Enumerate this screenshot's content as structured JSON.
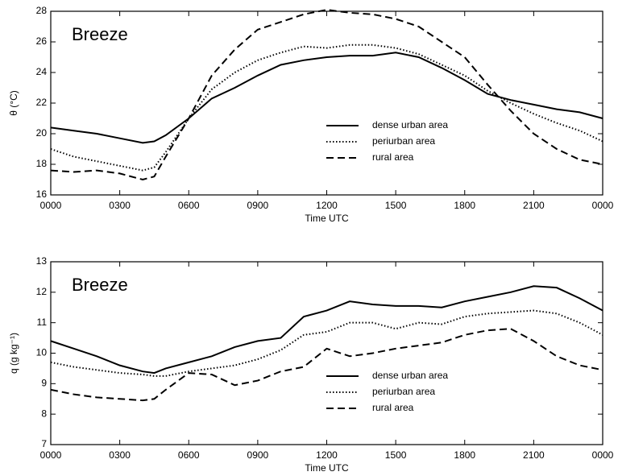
{
  "chart_data": [
    {
      "type": "line",
      "annotation": "Breeze",
      "xlabel": "Time UTC",
      "ylabel": "θ (°C)",
      "x": [
        0,
        1,
        2,
        3,
        4,
        4.5,
        5,
        6,
        7,
        8,
        9,
        10,
        11,
        12,
        13,
        14,
        15,
        16,
        17,
        18,
        19,
        20,
        21,
        22,
        23,
        24
      ],
      "xlim": [
        0,
        24
      ],
      "xticks": [
        {
          "value": 0,
          "label": "0000"
        },
        {
          "value": 3,
          "label": "0300"
        },
        {
          "value": 6,
          "label": "0600"
        },
        {
          "value": 9,
          "label": "0900"
        },
        {
          "value": 12,
          "label": "1200"
        },
        {
          "value": 15,
          "label": "1500"
        },
        {
          "value": 18,
          "label": "1800"
        },
        {
          "value": 21,
          "label": "2100"
        },
        {
          "value": 24,
          "label": "0000"
        }
      ],
      "ylim": [
        16,
        28
      ],
      "yticks": [
        16,
        18,
        20,
        22,
        24,
        26,
        28
      ],
      "series": [
        {
          "name": "dense urban area",
          "color": "#000000",
          "dash": "solid",
          "values": [
            20.4,
            20.2,
            20.0,
            19.7,
            19.4,
            19.5,
            19.9,
            21.0,
            22.3,
            23.0,
            23.8,
            24.5,
            24.8,
            25.0,
            25.1,
            25.1,
            25.3,
            25.0,
            24.3,
            23.5,
            22.6,
            22.2,
            21.9,
            21.6,
            21.4,
            21.0
          ]
        },
        {
          "name": "periurban area",
          "color": "#000000",
          "dash": "dotted",
          "values": [
            19.0,
            18.5,
            18.2,
            17.9,
            17.6,
            17.8,
            18.8,
            21.0,
            22.9,
            24.0,
            24.8,
            25.3,
            25.7,
            25.6,
            25.8,
            25.8,
            25.6,
            25.2,
            24.5,
            23.8,
            22.8,
            22.0,
            21.3,
            20.7,
            20.2,
            19.5
          ]
        },
        {
          "name": "rural area",
          "color": "#000000",
          "dash": "dashed",
          "values": [
            17.6,
            17.5,
            17.6,
            17.4,
            17.0,
            17.2,
            18.5,
            21.0,
            23.8,
            25.5,
            26.8,
            27.3,
            27.8,
            28.1,
            27.9,
            27.8,
            27.5,
            27.0,
            26.0,
            25.0,
            23.2,
            21.5,
            20.0,
            19.0,
            18.3,
            18.0
          ]
        }
      ]
    },
    {
      "type": "line",
      "annotation": "Breeze",
      "xlabel": "Time UTC",
      "ylabel": "q (g kg⁻¹)",
      "x": [
        0,
        1,
        2,
        3,
        4,
        4.5,
        5,
        6,
        7,
        8,
        9,
        10,
        11,
        12,
        13,
        14,
        15,
        16,
        17,
        18,
        19,
        20,
        21,
        22,
        23,
        24
      ],
      "xlim": [
        0,
        24
      ],
      "xticks": [
        {
          "value": 0,
          "label": "0000"
        },
        {
          "value": 3,
          "label": "0300"
        },
        {
          "value": 6,
          "label": "0600"
        },
        {
          "value": 9,
          "label": "0900"
        },
        {
          "value": 12,
          "label": "1200"
        },
        {
          "value": 15,
          "label": "1500"
        },
        {
          "value": 18,
          "label": "1800"
        },
        {
          "value": 21,
          "label": "2100"
        },
        {
          "value": 24,
          "label": "0000"
        }
      ],
      "ylim": [
        7,
        13
      ],
      "yticks": [
        7,
        8,
        9,
        10,
        11,
        12,
        13
      ],
      "series": [
        {
          "name": "dense urban area",
          "color": "#000000",
          "dash": "solid",
          "values": [
            10.4,
            10.15,
            9.9,
            9.6,
            9.4,
            9.35,
            9.5,
            9.7,
            9.9,
            10.2,
            10.4,
            10.5,
            11.2,
            11.4,
            11.7,
            11.6,
            11.55,
            11.55,
            11.5,
            11.7,
            11.85,
            12.0,
            12.2,
            12.15,
            11.8,
            11.4
          ]
        },
        {
          "name": "periurban area",
          "color": "#000000",
          "dash": "dotted",
          "values": [
            9.7,
            9.55,
            9.45,
            9.35,
            9.3,
            9.25,
            9.25,
            9.4,
            9.5,
            9.6,
            9.8,
            10.1,
            10.6,
            10.7,
            11.0,
            11.0,
            10.8,
            11.0,
            10.95,
            11.2,
            11.3,
            11.35,
            11.4,
            11.3,
            11.0,
            10.6
          ]
        },
        {
          "name": "rural area",
          "color": "#000000",
          "dash": "dashed",
          "values": [
            8.8,
            8.65,
            8.55,
            8.5,
            8.45,
            8.5,
            8.8,
            9.35,
            9.3,
            8.95,
            9.1,
            9.4,
            9.55,
            10.15,
            9.9,
            10.0,
            10.15,
            10.25,
            10.35,
            10.6,
            10.75,
            10.8,
            10.4,
            9.9,
            9.6,
            9.45
          ]
        }
      ]
    }
  ]
}
